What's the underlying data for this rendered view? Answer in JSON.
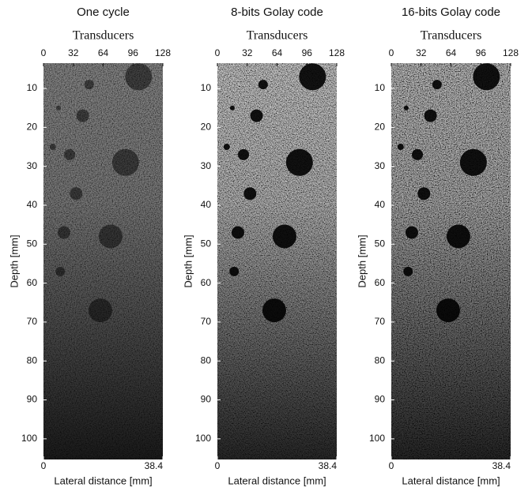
{
  "chart_data": [
    {
      "type": "image",
      "title": "One cycle",
      "x2label": "Transducers",
      "x2lim": [
        0,
        128
      ],
      "x2ticks": [
        0,
        32,
        64,
        96,
        128
      ],
      "ylabel": "Depth [mm]",
      "ylim": [
        3.5,
        105.3
      ],
      "yticks": [
        10,
        20,
        30,
        40,
        50,
        60,
        70,
        80,
        90,
        100
      ],
      "xlabel": "Lateral distance [mm]",
      "xlim": [
        0,
        38.4
      ],
      "xticks": [
        0,
        38.4
      ]
    },
    {
      "type": "image",
      "title": "8-bits Golay code",
      "x2label": "Transducers",
      "x2lim": [
        0,
        128
      ],
      "x2ticks": [
        0,
        32,
        64,
        96,
        128
      ],
      "ylabel": "Depth [mm]",
      "ylim": [
        3.5,
        105.3
      ],
      "yticks": [
        10,
        20,
        30,
        40,
        50,
        60,
        70,
        80,
        90,
        100
      ],
      "xlabel": "Lateral distance [mm]",
      "xlim": [
        0,
        38.4
      ],
      "xticks": [
        0,
        38.4
      ]
    },
    {
      "type": "image",
      "title": "16-bits Golay code",
      "x2label": "Transducers",
      "x2lim": [
        0,
        128
      ],
      "x2ticks": [
        0,
        32,
        64,
        96,
        128
      ],
      "ylabel": "Depth [mm]",
      "ylim": [
        3.5,
        105.3
      ],
      "yticks": [
        10,
        20,
        30,
        40,
        50,
        60,
        70,
        80,
        90,
        100
      ],
      "xlabel": "Lateral distance [mm]",
      "xlim": [
        0,
        38.4
      ],
      "xticks": [
        0,
        38.4
      ]
    }
  ]
}
